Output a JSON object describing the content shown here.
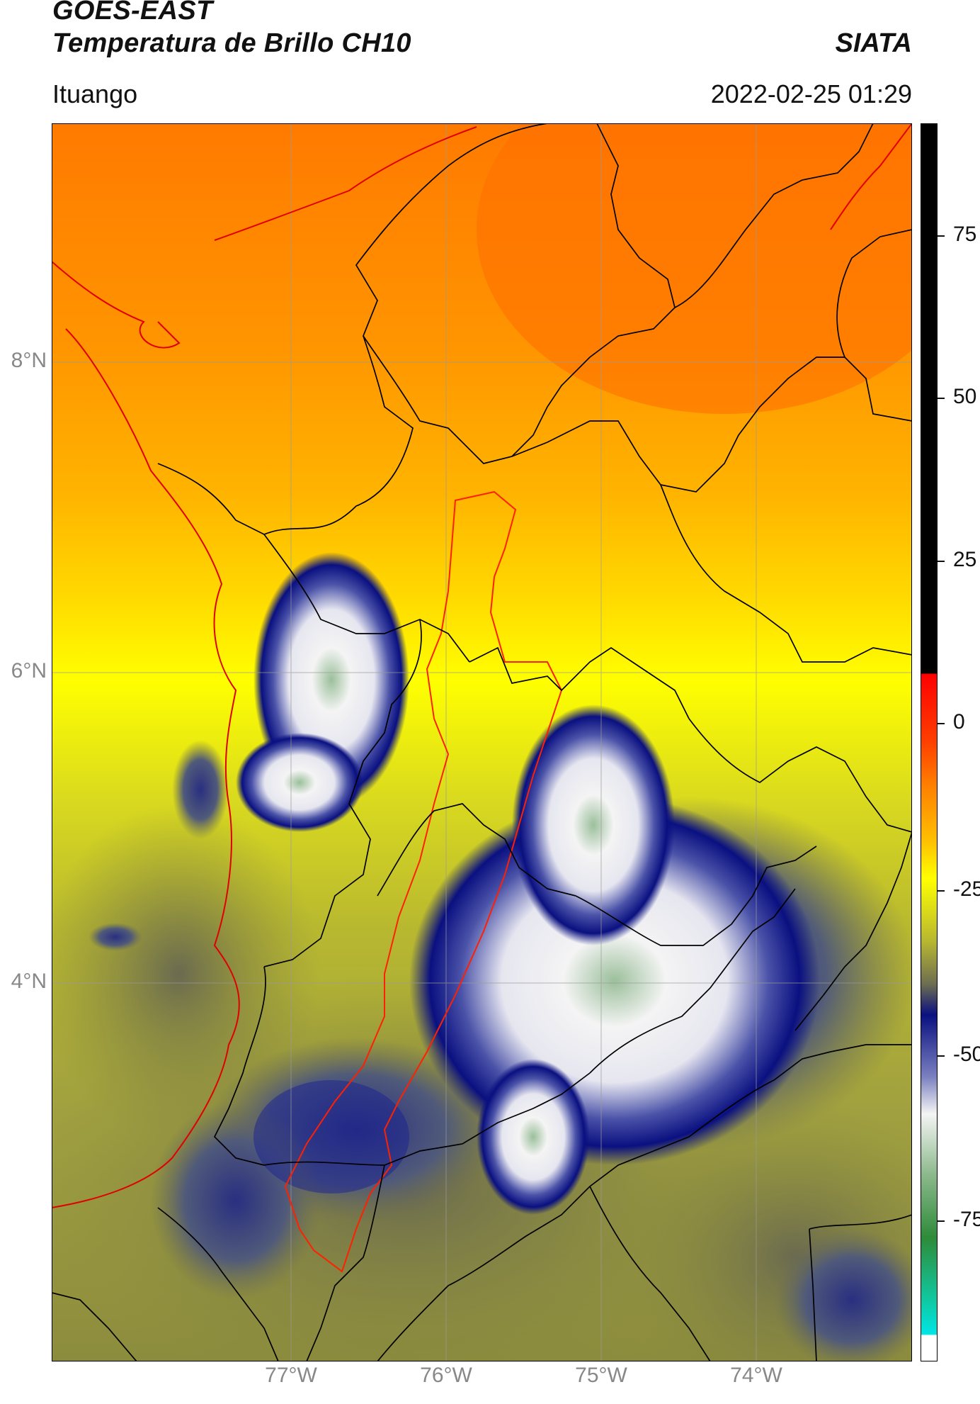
{
  "header": {
    "title_line1": "GOES-EAST",
    "title_line2": "Temperatura de Brillo CH10",
    "organization": "SIATA",
    "region": "Ituango",
    "timestamp": "2022-02-25 01:29"
  },
  "map": {
    "lat_labels": [
      "8°N",
      "6°N",
      "4°N"
    ],
    "lon_labels": [
      "77°W",
      "76°W",
      "75°W",
      "74°W"
    ]
  },
  "colorbar": {
    "tick_labels": [
      "75",
      "50",
      "25",
      "0",
      "-25",
      "-50",
      "-75"
    ],
    "colors": {
      "black": "#000000",
      "red": "#ff1a00",
      "orange": "#ff8000",
      "yellow": "#ffff00",
      "olive": "#8a8a3a",
      "navy": "#0a1080",
      "white": "#f4f4f4",
      "green": "#2e8b3a",
      "cyan": "#00e5e5"
    }
  }
}
